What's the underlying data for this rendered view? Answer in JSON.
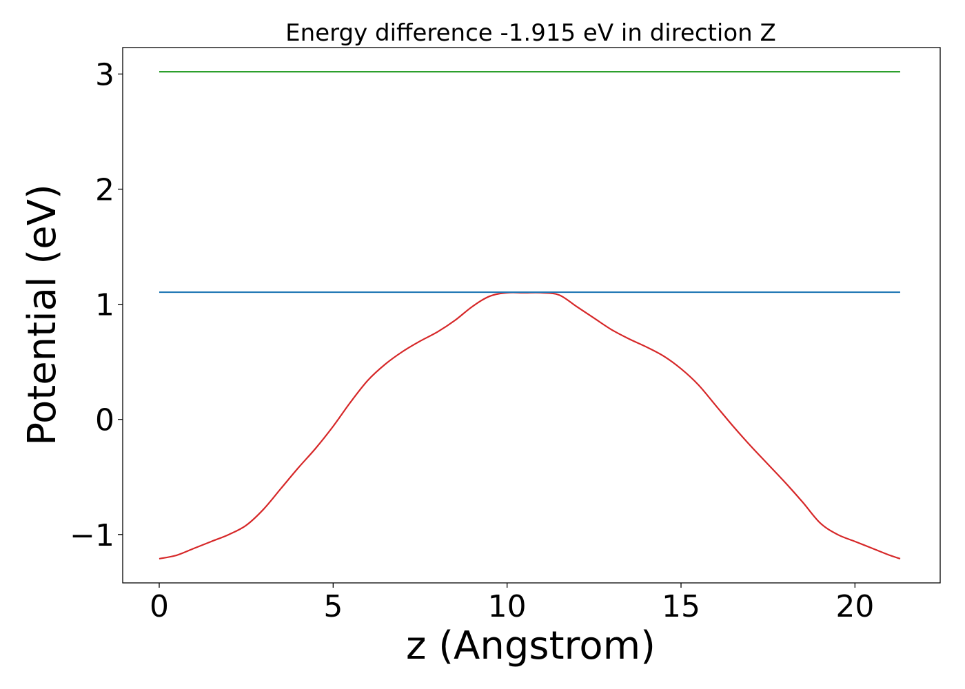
{
  "chart_data": {
    "type": "line",
    "title": "Energy difference -1.915 eV in direction Z",
    "xlabel": "z (Angstrom)",
    "ylabel": "Potential (eV)",
    "xlim": [
      -1.05,
      22.45
    ],
    "ylim": [
      -1.42,
      3.23
    ],
    "xticks": [
      0,
      5,
      10,
      15,
      20
    ],
    "xtick_labels": [
      "0",
      "5",
      "10",
      "15",
      "20"
    ],
    "yticks": [
      -1,
      0,
      1,
      2,
      3
    ],
    "ytick_labels": [
      "−1",
      "0",
      "1",
      "2",
      "3"
    ],
    "grid": false,
    "series": [
      {
        "color": "#d62728",
        "x": [
          0,
          0.5,
          1,
          1.5,
          2,
          2.5,
          3,
          3.5,
          4,
          4.5,
          5,
          5.5,
          6,
          6.5,
          7,
          7.5,
          8,
          8.5,
          9,
          9.5,
          10,
          10.5,
          11,
          11.5,
          12,
          12.5,
          13,
          13.5,
          14,
          14.5,
          15,
          15.5,
          16,
          16.5,
          17,
          17.5,
          18,
          18.5,
          19,
          19.5,
          20,
          20.5,
          21,
          21.3
        ],
        "y": [
          -1.21,
          -1.18,
          -1.12,
          -1.06,
          -1.0,
          -0.92,
          -0.78,
          -0.6,
          -0.42,
          -0.25,
          -0.06,
          0.15,
          0.34,
          0.48,
          0.59,
          0.68,
          0.76,
          0.86,
          0.98,
          1.07,
          1.1,
          1.1,
          1.1,
          1.08,
          0.98,
          0.88,
          0.78,
          0.7,
          0.63,
          0.55,
          0.44,
          0.3,
          0.12,
          -0.06,
          -0.23,
          -0.39,
          -0.55,
          -0.72,
          -0.9,
          -1.0,
          -1.06,
          -1.12,
          -1.18,
          -1.21
        ]
      },
      {
        "color": "#1f77b4",
        "x": [
          0,
          21.3
        ],
        "y": [
          1.105,
          1.105
        ]
      },
      {
        "color": "#2ca02c",
        "x": [
          0,
          21.3
        ],
        "y": [
          3.02,
          3.02
        ]
      }
    ]
  }
}
